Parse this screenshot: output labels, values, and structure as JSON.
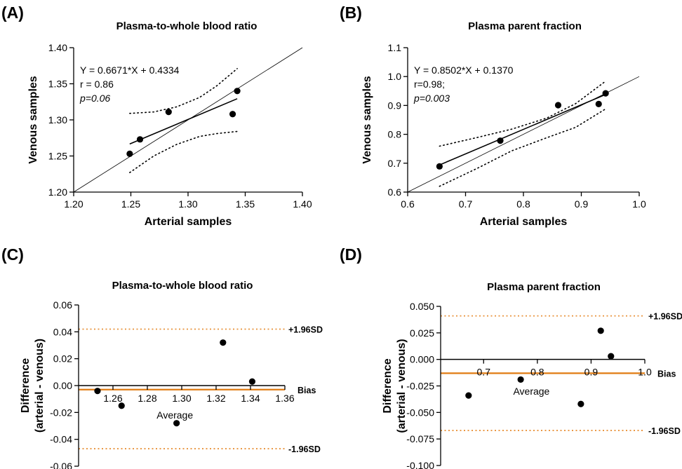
{
  "colors": {
    "axis": "#000000",
    "points": "#000000",
    "limits": "#E8923A",
    "bias": "#E07B12"
  },
  "chart_data": [
    {
      "panel": "(A)",
      "type": "scatter",
      "title": "Plasma-to-whole blood ratio",
      "xlabel": "Arterial samples",
      "ylabel": "Venous samples",
      "xlim": [
        1.2,
        1.4
      ],
      "ylim": [
        1.2,
        1.4
      ],
      "xticks": [
        1.2,
        1.25,
        1.3,
        1.35,
        1.4
      ],
      "yticks": [
        1.2,
        1.25,
        1.3,
        1.35,
        1.4
      ],
      "xtick_labels": [
        "1.20",
        "1.25",
        "1.30",
        "1.35",
        "1.40"
      ],
      "ytick_labels": [
        "1.20",
        "1.25",
        "1.30",
        "1.35",
        "1.40"
      ],
      "points": [
        [
          1.249,
          1.253
        ],
        [
          1.258,
          1.273
        ],
        [
          1.283,
          1.311
        ],
        [
          1.339,
          1.308
        ],
        [
          1.343,
          1.34
        ]
      ],
      "fit": {
        "x": [
          1.249,
          1.343
        ],
        "slope": 0.6671,
        "intercept": 0.4334
      },
      "ci_upper": [
        [
          1.249,
          1.309
        ],
        [
          1.27,
          1.311
        ],
        [
          1.29,
          1.318
        ],
        [
          1.31,
          1.331
        ],
        [
          1.325,
          1.347
        ],
        [
          1.343,
          1.371
        ]
      ],
      "ci_lower": [
        [
          1.249,
          1.227
        ],
        [
          1.27,
          1.25
        ],
        [
          1.29,
          1.266
        ],
        [
          1.31,
          1.277
        ],
        [
          1.325,
          1.281
        ],
        [
          1.343,
          1.284
        ]
      ],
      "identity_line": true,
      "annotations": [
        "Y = 0.6671*X + 0.4334",
        "r = 0.86",
        "p=0.06"
      ]
    },
    {
      "panel": "(B)",
      "type": "scatter",
      "title": "Plasma parent fraction",
      "xlabel": "Arterial samples",
      "ylabel": "Venous samples",
      "xlim": [
        0.6,
        1.0
      ],
      "ylim": [
        0.6,
        1.1
      ],
      "xticks": [
        0.6,
        0.7,
        0.8,
        0.9,
        1.0
      ],
      "yticks": [
        0.6,
        0.7,
        0.8,
        0.9,
        1.0,
        1.1
      ],
      "xtick_labels": [
        "0.6",
        "0.7",
        "0.8",
        "0.9",
        "1.0"
      ],
      "ytick_labels": [
        "0.6",
        "0.7",
        "0.8",
        "0.9",
        "1.0",
        "1.1"
      ],
      "points": [
        [
          0.655,
          0.689
        ],
        [
          0.76,
          0.778
        ],
        [
          0.86,
          0.901
        ],
        [
          0.93,
          0.905
        ],
        [
          0.942,
          0.942
        ]
      ],
      "fit": {
        "x": [
          0.655,
          0.942
        ],
        "slope": 0.8502,
        "intercept": 0.137
      },
      "ci_upper": [
        [
          0.655,
          0.759
        ],
        [
          0.72,
          0.789
        ],
        [
          0.78,
          0.818
        ],
        [
          0.84,
          0.856
        ],
        [
          0.89,
          0.906
        ],
        [
          0.942,
          0.984
        ]
      ],
      "ci_lower": [
        [
          0.655,
          0.62
        ],
        [
          0.72,
          0.682
        ],
        [
          0.78,
          0.743
        ],
        [
          0.84,
          0.788
        ],
        [
          0.89,
          0.824
        ],
        [
          0.942,
          0.888
        ]
      ],
      "identity_line": true,
      "annotations": [
        "Y = 0.8502*X + 0.1370",
        "r=0.98;",
        "p=0.003"
      ]
    },
    {
      "panel": "(C)",
      "type": "scatter",
      "title": "Plasma-to-whole blood ratio",
      "xlabel": "Average",
      "ylabel": "Difference\n(arterial - venous)",
      "xlim": [
        1.24,
        1.36
      ],
      "ylim": [
        -0.06,
        0.06
      ],
      "xticks": [
        1.26,
        1.28,
        1.3,
        1.32,
        1.34,
        1.36
      ],
      "yticks": [
        -0.06,
        -0.04,
        -0.02,
        0.0,
        0.02,
        0.04,
        0.06
      ],
      "xtick_labels": [
        "1.26",
        "1.28",
        "1.30",
        "1.32",
        "1.34",
        "1.36"
      ],
      "ytick_labels": [
        "-0.06",
        "-0.04",
        "-0.02",
        "0.00",
        "0.02",
        "0.04",
        "0.06"
      ],
      "points": [
        [
          1.251,
          -0.004
        ],
        [
          1.265,
          -0.015
        ],
        [
          1.297,
          -0.028
        ],
        [
          1.324,
          0.032
        ],
        [
          1.341,
          0.003
        ]
      ],
      "bias": -0.003,
      "upper_loa": 0.042,
      "lower_loa": -0.047,
      "bias_label": "Bias",
      "upper_label": "+1.96SD",
      "lower_label": "-1.96SD"
    },
    {
      "panel": "(D)",
      "type": "scatter",
      "title": "Plasma parent fraction",
      "xlabel": "Average",
      "ylabel": "Difference\n(arterial - venous)",
      "xlim": [
        0.62,
        1.0
      ],
      "ylim": [
        -0.1,
        0.05
      ],
      "xticks": [
        0.7,
        0.8,
        0.9,
        1.0
      ],
      "yticks": [
        -0.1,
        -0.075,
        -0.05,
        -0.025,
        0.0,
        0.025,
        0.05
      ],
      "xtick_labels": [
        "0.7",
        "0.8",
        "0.9",
        "1.0"
      ],
      "ytick_labels": [
        "-0.100",
        "-0.075",
        "-0.050",
        "-0.025",
        "0.000",
        "0.025",
        "0.050"
      ],
      "points": [
        [
          0.672,
          -0.034
        ],
        [
          0.769,
          -0.019
        ],
        [
          0.881,
          -0.042
        ],
        [
          0.918,
          0.027
        ],
        [
          0.937,
          0.003
        ]
      ],
      "bias": -0.013,
      "upper_loa": 0.041,
      "lower_loa": -0.067,
      "bias_label": "Bias",
      "upper_label": "+1.96SD",
      "lower_label": "-1.96SD"
    }
  ]
}
